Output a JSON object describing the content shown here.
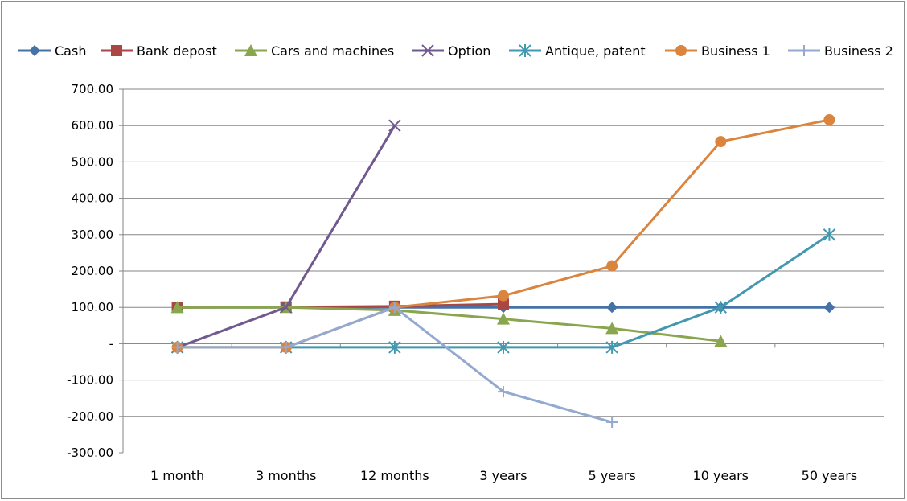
{
  "chart_data": {
    "type": "line",
    "categories": [
      "1 month",
      "3 months",
      "12 months",
      "3 years",
      "5 years",
      "10 years",
      "50 years"
    ],
    "ylim": [
      -300,
      700
    ],
    "yticks": [
      700,
      600,
      500,
      400,
      300,
      200,
      100,
      0,
      -100,
      -200,
      -300
    ],
    "ytick_labels": [
      "700.00",
      "600.00",
      "500.00",
      "400.00",
      "300.00",
      "200.00",
      "100.00",
      "-",
      "-100.00",
      "-200.00",
      "-300.00"
    ],
    "grid": true,
    "legend_position": "top",
    "series": [
      {
        "name": "Cash",
        "color": "#4572A7",
        "marker": "diamond",
        "values": [
          100,
          100,
          100,
          100,
          100,
          100,
          100
        ]
      },
      {
        "name": "Bank depost",
        "color": "#AA4643",
        "marker": "square",
        "values": [
          100,
          101,
          103,
          109,
          null,
          null,
          null
        ]
      },
      {
        "name": "Cars and machines",
        "color": "#89A54E",
        "marker": "triangle",
        "values": [
          100,
          100,
          92,
          68,
          42,
          7,
          null
        ]
      },
      {
        "name": "Option",
        "color": "#71588F",
        "marker": "x",
        "values": [
          -10,
          100,
          600,
          null,
          null,
          null,
          null
        ]
      },
      {
        "name": "Antique, patent",
        "color": "#4198AF",
        "marker": "star",
        "values": [
          -10,
          -10,
          -10,
          -10,
          -10,
          100,
          300
        ]
      },
      {
        "name": "Business 1",
        "color": "#DB843D",
        "marker": "circle",
        "values": [
          -10,
          -10,
          100,
          132,
          214,
          556,
          616
        ]
      },
      {
        "name": "Business 2",
        "color": "#93A9CF",
        "marker": "plus",
        "values": [
          -10,
          -10,
          100,
          -132,
          -216,
          null,
          null
        ]
      }
    ]
  }
}
